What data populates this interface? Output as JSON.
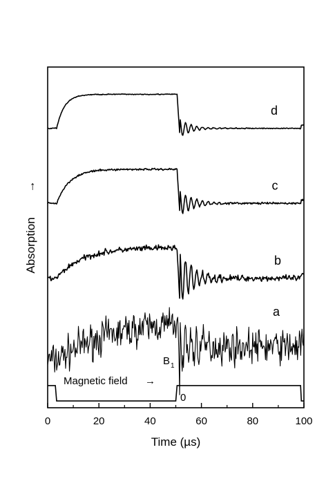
{
  "chart_data": {
    "type": "line",
    "title": "",
    "xlabel": "Time (µs)",
    "ylabel": "Absorption",
    "ylabel_arrow": "→",
    "xlim": [
      0,
      100
    ],
    "xticks": [
      0,
      20,
      40,
      60,
      80,
      100
    ],
    "grid": false,
    "series": [
      {
        "name": "a",
        "kind": "noisy",
        "baseline": 0.14,
        "plateau": 0.26,
        "rise_tau": 22,
        "noise": 0.035,
        "ring_amp": 0.12,
        "ring_decay": 5.0,
        "tail": 0.18
      },
      {
        "name": "b",
        "kind": "smooth",
        "baseline": 0.38,
        "plateau": 0.47,
        "rise_tau": 10,
        "noise": 0.006,
        "ring_amp": 0.09,
        "ring_decay": 6.0,
        "tail": 0.38
      },
      {
        "name": "c",
        "kind": "smooth",
        "baseline": 0.6,
        "plateau": 0.7,
        "rise_tau": 5,
        "noise": 0.002,
        "ring_amp": 0.045,
        "ring_decay": 5.5,
        "tail": 0.6
      },
      {
        "name": "d",
        "kind": "smooth",
        "baseline": 0.82,
        "plateau": 0.92,
        "rise_tau": 3,
        "noise": 0.001,
        "ring_amp": 0.035,
        "ring_decay": 4.5,
        "tail": 0.82
      }
    ],
    "field_trace": {
      "label": "Magnetic field",
      "arrow": "→",
      "high_label": "B",
      "high_sub": "1",
      "low_label": "0",
      "high": 0.065,
      "low": 0.02,
      "drop_at": 3.5,
      "rise_at": 50.5,
      "drop2_at": 99
    }
  }
}
